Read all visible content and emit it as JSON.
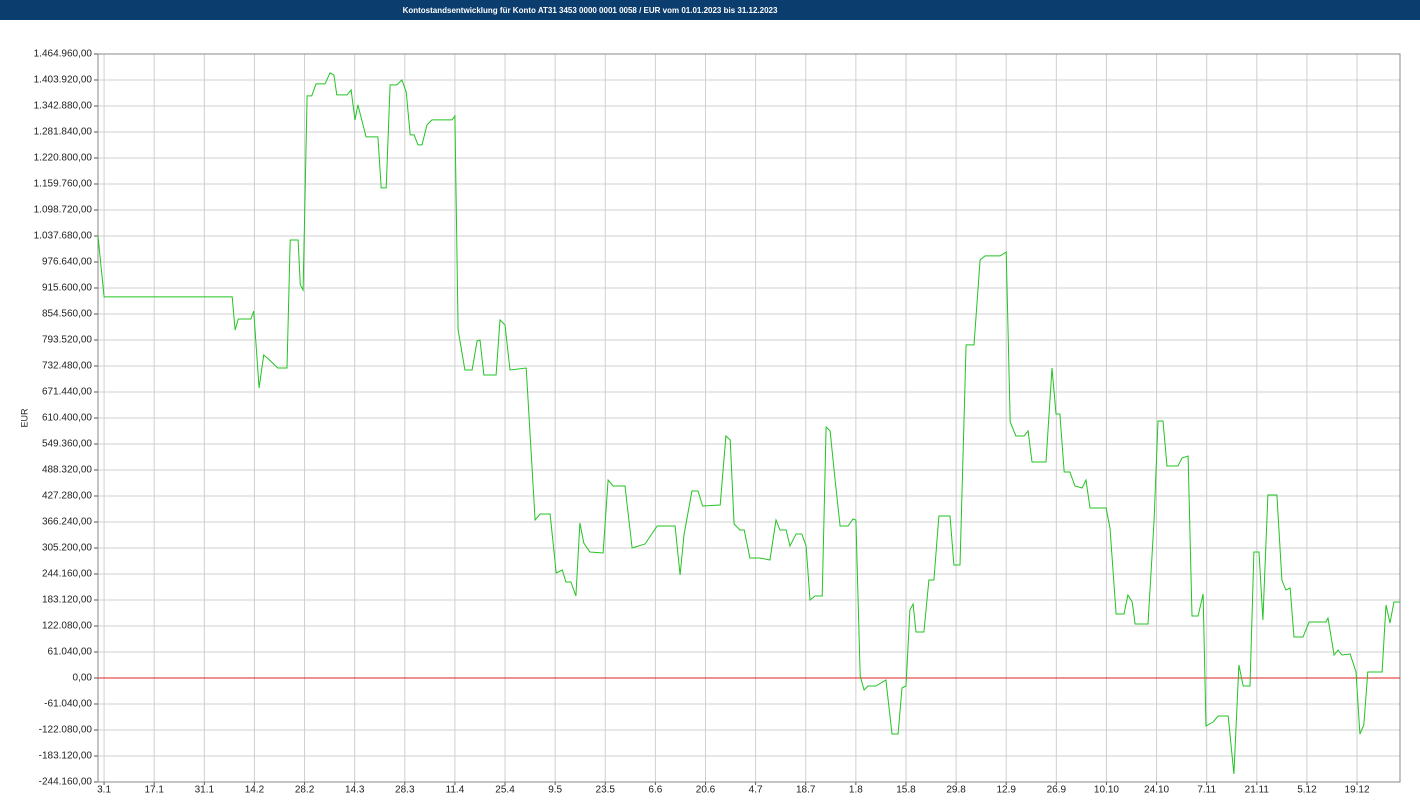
{
  "chart_data": {
    "type": "line",
    "title": "Kontostandsentwicklung für Konto AT31 3453 0000 0001 0058 / EUR vom 01.01.2023 bis 31.12.2023",
    "y_label": "EUR",
    "grid": true,
    "reference_line": 0,
    "reference_color": "#e02020",
    "xlim": [
      1.3,
      365
    ],
    "xticks": [
      {
        "value": 3,
        "label": "3.1"
      },
      {
        "value": 17,
        "label": "17.1"
      },
      {
        "value": 31,
        "label": "31.1"
      },
      {
        "value": 45,
        "label": "14.2"
      },
      {
        "value": 59,
        "label": "28.2"
      },
      {
        "value": 73,
        "label": "14.3"
      },
      {
        "value": 87,
        "label": "28.3"
      },
      {
        "value": 101,
        "label": "11.4"
      },
      {
        "value": 115,
        "label": "25.4"
      },
      {
        "value": 129,
        "label": "9.5"
      },
      {
        "value": 143,
        "label": "23.5"
      },
      {
        "value": 157,
        "label": "6.6"
      },
      {
        "value": 171,
        "label": "20.6"
      },
      {
        "value": 185,
        "label": "4.7"
      },
      {
        "value": 199,
        "label": "18.7"
      },
      {
        "value": 213,
        "label": "1.8"
      },
      {
        "value": 227,
        "label": "15.8"
      },
      {
        "value": 241,
        "label": "29.8"
      },
      {
        "value": 255,
        "label": "12.9"
      },
      {
        "value": 269,
        "label": "26.9"
      },
      {
        "value": 283,
        "label": "10.10"
      },
      {
        "value": 297,
        "label": "24.10"
      },
      {
        "value": 311,
        "label": "7.11"
      },
      {
        "value": 325,
        "label": "21.11"
      },
      {
        "value": 339,
        "label": "5.12"
      },
      {
        "value": 353,
        "label": "19.12"
      }
    ],
    "ylim": [
      -244160,
      1464960
    ],
    "yticks": [
      {
        "value": -244160,
        "label": "-244.160,00"
      },
      {
        "value": -183120,
        "label": "-183.120,00"
      },
      {
        "value": -122080,
        "label": "-122.080,00"
      },
      {
        "value": -61040,
        "label": "-61.040,00"
      },
      {
        "value": 0,
        "label": "0,00"
      },
      {
        "value": 61040,
        "label": "61.040,00"
      },
      {
        "value": 122080,
        "label": "122.080,00"
      },
      {
        "value": 183120,
        "label": "183.120,00"
      },
      {
        "value": 244160,
        "label": "244.160,00"
      },
      {
        "value": 305200,
        "label": "305.200,00"
      },
      {
        "value": 366240,
        "label": "366.240,00"
      },
      {
        "value": 427280,
        "label": "427.280,00"
      },
      {
        "value": 488320,
        "label": "488.320,00"
      },
      {
        "value": 549360,
        "label": "549.360,00"
      },
      {
        "value": 610400,
        "label": "610.400,00"
      },
      {
        "value": 671440,
        "label": "671.440,00"
      },
      {
        "value": 732480,
        "label": "732.480,00"
      },
      {
        "value": 793520,
        "label": "793.520,00"
      },
      {
        "value": 854560,
        "label": "854.560,00"
      },
      {
        "value": 915600,
        "label": "915.600,00"
      },
      {
        "value": 976640,
        "label": "976.640,00"
      },
      {
        "value": 1037680,
        "label": "1.037.680,00"
      },
      {
        "value": 1098720,
        "label": "1.098.720,00"
      },
      {
        "value": 1159760,
        "label": "1.159.760,00"
      },
      {
        "value": 1220800,
        "label": "1.220.800,00"
      },
      {
        "value": 1281840,
        "label": "1.281.840,00"
      },
      {
        "value": 1342880,
        "label": "1.342.880,00"
      },
      {
        "value": 1403920,
        "label": "1.403.920,00"
      },
      {
        "value": 1464960,
        "label": "1.464.960,00"
      }
    ],
    "x": [
      1.3,
      3,
      38.8,
      39.6,
      40.5,
      44,
      44.8,
      46.3,
      47.6,
      49,
      51.5,
      54.1,
      55,
      57.2,
      57.8,
      58.6,
      59.7,
      61,
      62.2,
      64.7,
      66.1,
      67.2,
      68,
      70.9,
      72,
      73.1,
      73.9,
      76.2,
      79.5,
      80.4,
      81.8,
      82.9,
      84.8,
      86.2,
      87.4,
      88.5,
      89.6,
      90.7,
      91.8,
      93.2,
      94.6,
      100.2,
      101,
      101.9,
      103.8,
      105.8,
      107.2,
      108,
      109.1,
      112.5,
      113.6,
      115,
      116.4,
      120.9,
      123.4,
      124.8,
      127.6,
      129.3,
      131,
      132,
      133.4,
      134.8,
      135.9,
      137,
      138.7,
      142.4,
      143.8,
      145.2,
      148.5,
      150.5,
      154.1,
      155.8,
      157.5,
      162.5,
      163.9,
      165,
      167.2,
      168.9,
      170.2,
      175.1,
      176.7,
      177.9,
      179,
      180.6,
      181.8,
      183.4,
      186.2,
      189,
      190.7,
      191.8,
      193.5,
      194.6,
      196.3,
      197.9,
      199.1,
      200.2,
      201.6,
      203.6,
      204.7,
      205.8,
      207.2,
      208.6,
      210.8,
      212.2,
      213,
      214.2,
      215.3,
      216.4,
      218.6,
      221.4,
      223.1,
      224.8,
      225.9,
      227,
      228.1,
      229,
      229.8,
      232,
      233.4,
      234.8,
      236.2,
      239.3,
      240.4,
      242.1,
      243.8,
      246,
      247.7,
      249.1,
      253.3,
      255,
      256.1,
      257.7,
      260,
      261.1,
      262.2,
      266.1,
      267.8,
      268.9,
      270,
      271.2,
      272.8,
      274.2,
      276.2,
      277.3,
      278.4,
      282.9,
      284,
      285.7,
      287.9,
      289,
      290.2,
      291,
      294.6,
      296.3,
      297.4,
      298.8,
      299.9,
      303,
      304.1,
      305.8,
      306.9,
      308.6,
      310,
      310.8,
      312.8,
      314.2,
      317,
      318.6,
      320,
      321.2,
      323.1,
      324.2,
      325.6,
      326.7,
      328.1,
      330.6,
      332,
      333.1,
      334.3,
      335.4,
      337.9,
      339.6,
      344.3,
      344.9,
      346.6,
      347.7,
      348.8,
      351.1,
      352.7,
      353.8,
      354.9,
      356,
      360,
      361.1,
      362.2,
      363.3,
      365
    ],
    "series": [
      {
        "name": "EUR",
        "color": "#22c422",
        "values": [
          1037800,
          894600,
          894600,
          817100,
          842900,
          842900,
          861700,
          680900,
          758400,
          748000,
          727900,
          727900,
          1028400,
          1028400,
          922800,
          911000,
          1366500,
          1366500,
          1394700,
          1394700,
          1420500,
          1415800,
          1368900,
          1368900,
          1380600,
          1310200,
          1345400,
          1270300,
          1270300,
          1150500,
          1150500,
          1392400,
          1392400,
          1404100,
          1375900,
          1275000,
          1275000,
          1251500,
          1251500,
          1298400,
          1310200,
          1310200,
          1319600,
          817100,
          723200,
          723200,
          791300,
          793600,
          711400,
          711400,
          840600,
          828800,
          723200,
          727900,
          371000,
          385100,
          385100,
          246500,
          253600,
          225400,
          225400,
          192500,
          363900,
          317000,
          295800,
          293500,
          464900,
          450800,
          450800,
          305200,
          314600,
          335800,
          356900,
          356900,
          241800,
          335800,
          439100,
          439100,
          403900,
          406200,
          568200,
          558800,
          361600,
          347500,
          347500,
          281800,
          281800,
          277100,
          371000,
          347500,
          347500,
          309900,
          338100,
          338100,
          309900,
          183100,
          192500,
          192500,
          589300,
          580000,
          464900,
          356900,
          356900,
          373300,
          371000,
          4700,
          -28200,
          -18800,
          -18800,
          -4700,
          -131500,
          -131500,
          -23500,
          -18800,
          159700,
          173800,
          108000,
          108000,
          230100,
          230100,
          380400,
          380400,
          265300,
          265300,
          781900,
          781900,
          981500,
          990900,
          990900,
          1000200,
          601100,
          568200,
          568200,
          580000,
          507200,
          507200,
          727900,
          619900,
          619900,
          483700,
          483700,
          450800,
          446100,
          464900,
          399200,
          399200,
          352200,
          150300,
          150300,
          194900,
          178400,
          126800,
          126800,
          371000,
          603400,
          603400,
          497800,
          497800,
          516600,
          521300,
          145600,
          145600,
          197200,
          -112700,
          -103300,
          -89200,
          -89200,
          -225400,
          30500,
          -18800,
          -18800,
          295800,
          295800,
          136200,
          429700,
          429700,
          230100,
          206600,
          211300,
          96300,
          96300,
          131500,
          131500,
          140900,
          54000,
          65700,
          54000,
          56400,
          14100,
          -131500,
          -110400,
          14100,
          14100,
          171400,
          129100,
          178400,
          178400
        ]
      }
    ]
  }
}
